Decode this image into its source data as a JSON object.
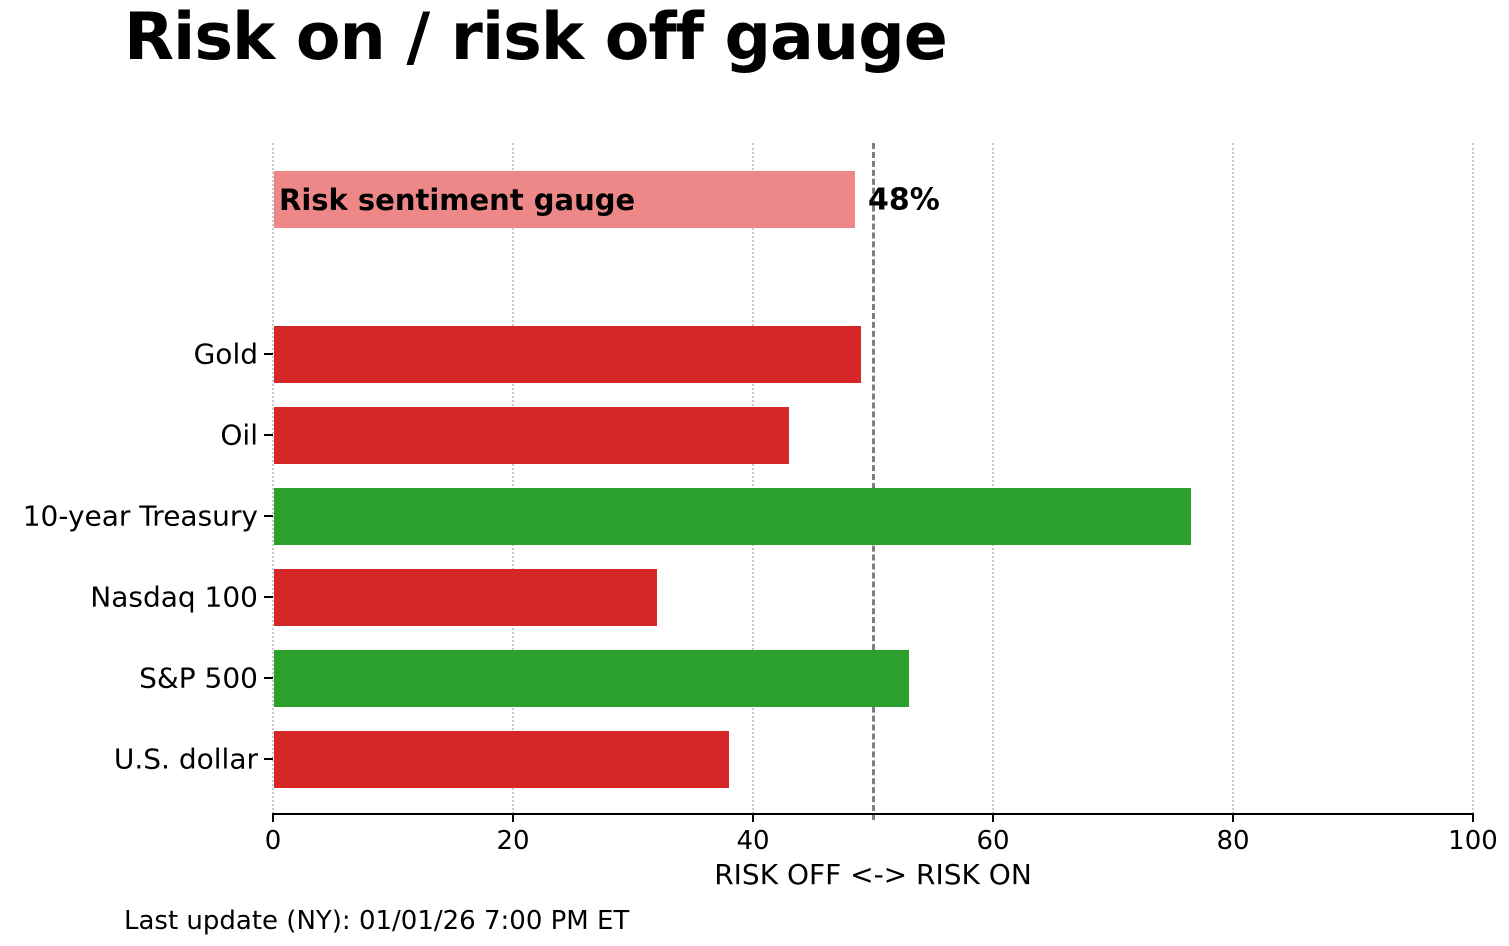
{
  "page": {
    "title": "Risk on / risk off gauge",
    "footer": "Last update (NY): 01/01/26 7:00 PM ET"
  },
  "chart_data": {
    "type": "bar",
    "orientation": "horizontal",
    "title": "Risk on / risk off gauge",
    "xlabel": "RISK OFF <-> RISK ON",
    "xlim": [
      0,
      100
    ],
    "xticks": [
      0,
      20,
      40,
      60,
      80,
      100
    ],
    "grid": "vertical dotted at each xtick",
    "legend": "none",
    "reference_line": {
      "x": 50,
      "style": "dashed"
    },
    "gauge_bar": {
      "label": "Risk sentiment gauge",
      "value": 48.5,
      "annotation": "48%",
      "color": "#ee8888"
    },
    "categories": [
      "Gold",
      "Oil",
      "10-year Treasury",
      "Nasdaq 100",
      "S&P 500",
      "U.S. dollar"
    ],
    "values": [
      49,
      43,
      76.5,
      32,
      53,
      38
    ],
    "bar_colors": [
      "#d62728",
      "#d62728",
      "#2ca02c",
      "#d62728",
      "#2ca02c",
      "#d62728"
    ],
    "colors": {
      "risk_off_red": "#d62728",
      "risk_on_green": "#2ca02c",
      "gauge_pink": "#ee8888",
      "reference_line_gray": "#7f7f7f",
      "gridline_gray": "#c9c9c9"
    }
  }
}
